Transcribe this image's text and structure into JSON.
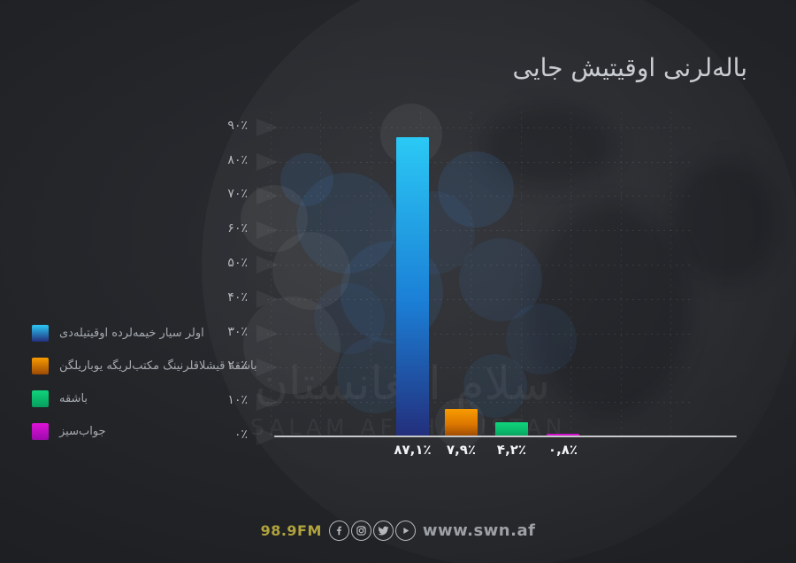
{
  "title": "باله‌لرنی اوقیتیش جایی",
  "watermark": {
    "arabic": "سلام افغانستان",
    "latin": "SALAM AFGHANISTAN"
  },
  "chart_data": {
    "type": "bar",
    "title": "باله‌لرنی اوقیتیش جایی",
    "ylim": [
      0,
      90
    ],
    "grid": true,
    "legend_position": "left",
    "series": [
      {
        "name": "اولر سیار خیمه‌لرده اوقیتیله‌دی",
        "value": 87.1,
        "value_label": "٨٧,١٪",
        "color_top": "#2bc9f5",
        "color_mid": "#1b7fd6",
        "color_bottom": "#232f7c"
      },
      {
        "name": "باشقه قیشلاقلرنینگ مکتب‌لریگه یوباریلگن",
        "value": 7.9,
        "value_label": "٧,٩٪",
        "color_top": "#f89b00",
        "color_mid": "#dd7800",
        "color_bottom": "#9c4a05"
      },
      {
        "name": "باشقه",
        "value": 4.2,
        "value_label": "۴,٢٪",
        "color_top": "#10d37c",
        "color_mid": "#0bbd6d",
        "color_bottom": "#079e5e"
      },
      {
        "name": "جواب‌سیز",
        "value": 0.8,
        "value_label": "٠,٨٪",
        "color_top": "#e012d8",
        "color_mid": "#c60cc4",
        "color_bottom": "#9c0aad"
      }
    ],
    "y_ticks": [
      {
        "value": 90,
        "label": "٩٠٪"
      },
      {
        "value": 80,
        "label": "٨٠٪"
      },
      {
        "value": 70,
        "label": "٧٠٪"
      },
      {
        "value": 60,
        "label": "۶٠٪"
      },
      {
        "value": 50,
        "label": "۵٠٪"
      },
      {
        "value": 40,
        "label": "۴٠٪"
      },
      {
        "value": 30,
        "label": "٣٠٪"
      },
      {
        "value": 20,
        "label": "٢٠٪"
      },
      {
        "value": 10,
        "label": "١٠٪"
      },
      {
        "value": 0,
        "label": "٠٪"
      }
    ]
  },
  "footer": {
    "radio_frequency": "98.9FM",
    "website": "www.swn.af",
    "icons": [
      "facebook-icon",
      "instagram-icon",
      "twitter-icon",
      "play-icon"
    ]
  },
  "colors": {
    "background": "#202226",
    "axis_line": "#c6c8ca",
    "tick_text": "#b4b8be",
    "value_text": "#f2f3f5",
    "legend_text": "#a6aab0",
    "title_text": "#c9ccd1",
    "fm_text": "#b1a33d",
    "website_text": "#9da0a5"
  }
}
